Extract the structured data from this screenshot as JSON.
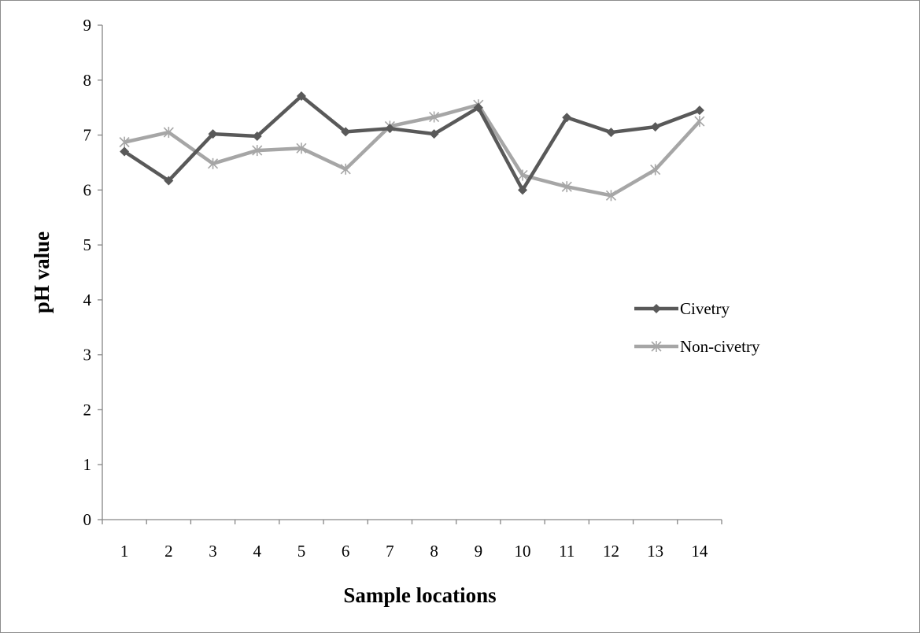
{
  "chart_data": {
    "type": "line",
    "title": "",
    "xlabel": "Sample locations",
    "ylabel": "pH value",
    "categories": [
      "1",
      "2",
      "3",
      "4",
      "5",
      "6",
      "7",
      "8",
      "9",
      "10",
      "11",
      "12",
      "13",
      "14"
    ],
    "ylim": [
      0,
      9
    ],
    "yticks": [
      "0",
      "1",
      "2",
      "3",
      "4",
      "5",
      "6",
      "7",
      "8",
      "9"
    ],
    "grid": false,
    "legend_position": "right",
    "series": [
      {
        "name": "Civetry",
        "color": "#595959",
        "marker": "diamond",
        "values": [
          6.7,
          6.17,
          7.02,
          6.98,
          7.71,
          7.06,
          7.12,
          7.02,
          7.5,
          6.0,
          7.32,
          7.05,
          7.15,
          7.45
        ]
      },
      {
        "name": "Non-civetry",
        "color": "#a6a6a6",
        "marker": "star",
        "values": [
          6.87,
          7.05,
          6.48,
          6.72,
          6.76,
          6.38,
          7.16,
          7.33,
          7.55,
          6.27,
          6.06,
          5.9,
          6.37,
          7.25
        ]
      }
    ]
  }
}
